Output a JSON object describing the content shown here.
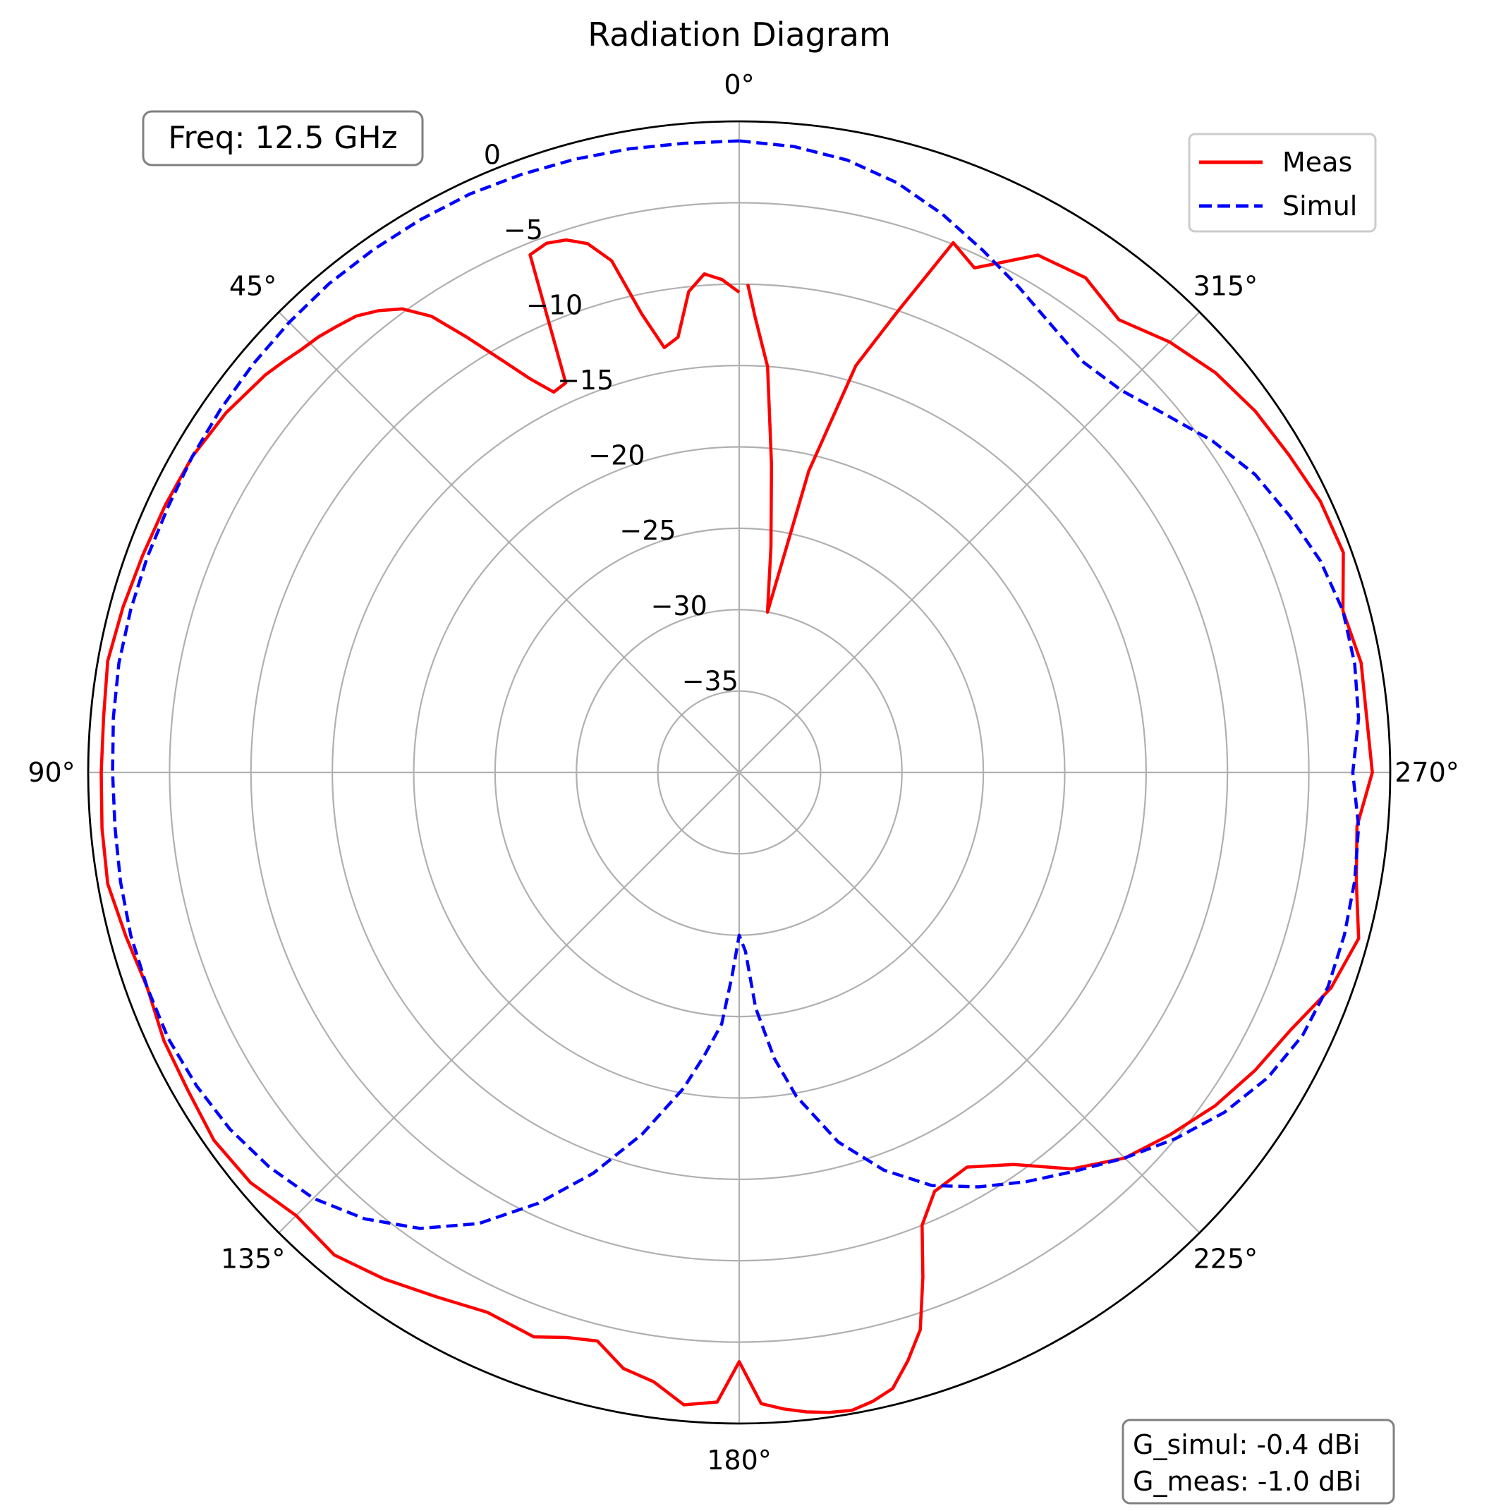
{
  "chart_data": {
    "type": "polar-line",
    "title": "Radiation Diagram",
    "theta_zero_location": "top",
    "theta_direction": "counterclockwise",
    "theta_ticks_deg": [
      0,
      45,
      90,
      135,
      180,
      225,
      270,
      315
    ],
    "theta_tick_labels": [
      "0°",
      "45°",
      "90°",
      "135°",
      "180°",
      "225°",
      "270°",
      "315°"
    ],
    "r_range": [
      -40,
      0
    ],
    "r_ticks": [
      -35,
      -30,
      -25,
      -20,
      -15,
      -10,
      -5,
      0
    ],
    "r_tick_labels": [
      "−35",
      "−30",
      "−25",
      "−20",
      "−15",
      "−10",
      "−5",
      "0"
    ],
    "r_label_angle_deg": 22.5,
    "grid": true,
    "legend": {
      "position": "top-right",
      "entries": [
        "Meas",
        "Simul"
      ]
    },
    "annotations": {
      "frequency": "Freq: 12.5 GHz",
      "gain_simul": "G_simul: -0.4 dBi",
      "gain_meas": "G_meas: -1.0 dBi"
    },
    "series": [
      {
        "name": "Meas",
        "color": "#ff0000",
        "style": "solid",
        "theta_deg": [
          0,
          2,
          4,
          6,
          8,
          10,
          12,
          14,
          16,
          18,
          20,
          22,
          24,
          26,
          28,
          30,
          32,
          34,
          36,
          38,
          40,
          42,
          44,
          46,
          48,
          50,
          55,
          60,
          65,
          70,
          75,
          80,
          85,
          90,
          95,
          100,
          105,
          110,
          115,
          120,
          125,
          130,
          135,
          140,
          145,
          150,
          155,
          160,
          163,
          166,
          169,
          172,
          175,
          178,
          180,
          182,
          184,
          186,
          188,
          190,
          192,
          194,
          196,
          198,
          200,
          202,
          205,
          210,
          215,
          220,
          225,
          230,
          235,
          240,
          245,
          250,
          255,
          260,
          265,
          270,
          275,
          280,
          285,
          290,
          295,
          300,
          305,
          310,
          315,
          320,
          325,
          330,
          335,
          338,
          341,
          344,
          347,
          350,
          352,
          354,
          356,
          358,
          359
        ],
        "r_db": [
          -10.5,
          -9.7,
          -9.3,
          -10.3,
          -13,
          -13.5,
          -11.2,
          -7.6,
          -6.2,
          -5.6,
          -5.4,
          -5.7,
          -13.8,
          -14.0,
          -12.6,
          -10.7,
          -8.5,
          -6.2,
          -4.8,
          -4.0,
          -3.4,
          -3.1,
          -2.8,
          -2.6,
          -2.3,
          -2.0,
          -1.5,
          -1.2,
          -1.1,
          -1.0,
          -0.8,
          -0.6,
          -0.8,
          -0.8,
          -0.7,
          -0.6,
          -1.0,
          -1.3,
          -1.0,
          -0.9,
          -0.6,
          -0.8,
          -1.5,
          -1.3,
          -2.0,
          -2.8,
          -3.4,
          -3.1,
          -3.7,
          -4.0,
          -2.7,
          -2.2,
          -1.0,
          -1.3,
          -3.8,
          -1.2,
          -0.8,
          -0.5,
          -0.3,
          -0.2,
          -0.5,
          -1.0,
          -2.4,
          -4.0,
          -7.0,
          -10.0,
          -11.6,
          -12.0,
          -10.6,
          -8.2,
          -6.5,
          -5.4,
          -4.3,
          -3.4,
          -2.6,
          -1.3,
          -0.6,
          -1.5,
          -1.9,
          -1.1,
          -1.3,
          -1.2,
          -1.6,
          -0.5,
          -0.6,
          -1.0,
          -1.3,
          -1.8,
          -2.6,
          -3.7,
          -2.9,
          -3.3,
          -5.8,
          -4.9,
          -10.0,
          -14.0,
          -21.0,
          -30.0,
          -26.0,
          -21.0,
          -15.0,
          -12.0,
          -10.0
        ]
      },
      {
        "name": "Simul",
        "color": "#0000ff",
        "style": "dashed",
        "theta_deg": [
          0,
          5,
          10,
          15,
          20,
          25,
          30,
          35,
          40,
          45,
          50,
          55,
          60,
          65,
          70,
          75,
          80,
          85,
          90,
          95,
          100,
          105,
          110,
          115,
          120,
          125,
          130,
          135,
          140,
          145,
          150,
          155,
          160,
          165,
          170,
          173,
          176,
          178,
          180,
          182,
          184,
          187,
          190,
          195,
          200,
          205,
          210,
          215,
          220,
          225,
          230,
          235,
          240,
          245,
          250,
          255,
          260,
          265,
          270,
          275,
          280,
          285,
          290,
          295,
          300,
          305,
          310,
          315,
          320,
          325,
          330,
          335,
          340,
          345,
          350,
          355,
          360
        ],
        "r_db": [
          -1.2,
          -1.2,
          -1.1,
          -1.0,
          -0.9,
          -0.8,
          -0.8,
          -0.8,
          -0.8,
          -0.9,
          -1.0,
          -1.1,
          -1.2,
          -1.3,
          -1.3,
          -1.3,
          -1.3,
          -1.4,
          -1.5,
          -1.5,
          -1.4,
          -1.3,
          -1.3,
          -1.3,
          -1.5,
          -1.8,
          -2.3,
          -3.0,
          -4.2,
          -5.8,
          -8.0,
          -10.8,
          -13.8,
          -17.0,
          -20.3,
          -22.5,
          -24.5,
          -27.5,
          -30.0,
          -29.0,
          -25.5,
          -22.3,
          -19.8,
          -16.5,
          -14.0,
          -12.0,
          -10.6,
          -9.3,
          -8.0,
          -6.5,
          -5.0,
          -3.6,
          -2.5,
          -1.8,
          -1.5,
          -1.5,
          -1.6,
          -1.8,
          -2.3,
          -1.8,
          -1.6,
          -1.6,
          -2.0,
          -2.7,
          -3.4,
          -4.5,
          -5.8,
          -6.8,
          -7.1,
          -6.5,
          -5.6,
          -4.6,
          -3.5,
          -2.5,
          -1.8,
          -1.4,
          -1.2
        ]
      }
    ]
  }
}
